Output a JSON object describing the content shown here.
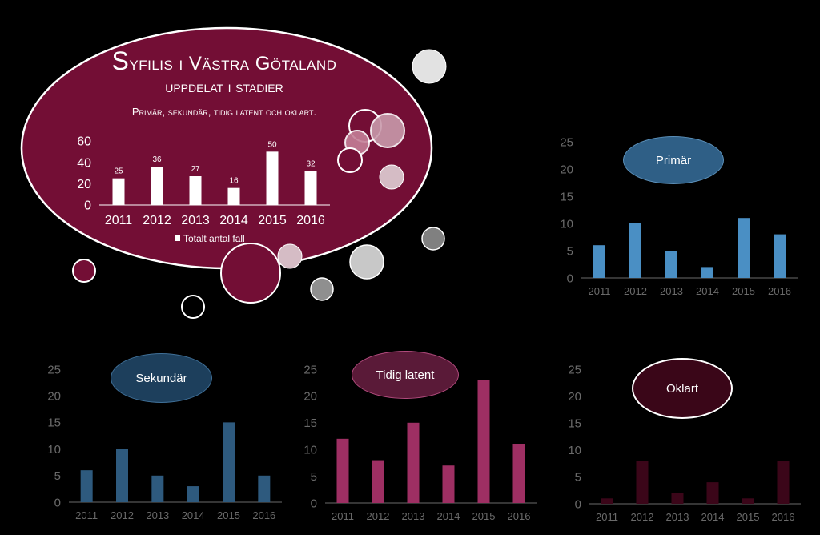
{
  "header": {
    "title_line1": "Syfilis i Västra Götaland",
    "title_line2": "uppdelat i stadier",
    "subtitle": "Primär, sekundär, tidig latent och oklart."
  },
  "chart_data": [
    {
      "type": "bar",
      "label": "",
      "legend": "Totalt antal fall",
      "categories": [
        "2011",
        "2012",
        "2013",
        "2014",
        "2015",
        "2016"
      ],
      "values": [
        25,
        36,
        27,
        16,
        50,
        32
      ],
      "ylim": [
        0,
        60
      ],
      "yticks": [
        0,
        20,
        40,
        60
      ],
      "data_labels": true,
      "color": "#ffffff",
      "legend_position": "bottom",
      "grid": false
    },
    {
      "type": "bar",
      "label": "Primär",
      "categories": [
        "2011",
        "2012",
        "2013",
        "2014",
        "2015",
        "2016"
      ],
      "values": [
        6,
        10,
        5,
        2,
        11,
        8
      ],
      "ylim": [
        0,
        25
      ],
      "yticks": [
        0,
        5,
        10,
        15,
        20,
        25
      ],
      "color": "#4a8fc4",
      "grid": false
    },
    {
      "type": "bar",
      "label": "Sekundär",
      "categories": [
        "2011",
        "2012",
        "2013",
        "2014",
        "2015",
        "2016"
      ],
      "values": [
        6,
        10,
        5,
        3,
        15,
        5
      ],
      "ylim": [
        0,
        25
      ],
      "yticks": [
        0,
        5,
        10,
        15,
        20,
        25
      ],
      "color": "#2e5a7e",
      "grid": false
    },
    {
      "type": "bar",
      "label": "Tidig latent",
      "categories": [
        "2011",
        "2012",
        "2013",
        "2014",
        "2015",
        "2016"
      ],
      "values": [
        12,
        8,
        15,
        7,
        23,
        11
      ],
      "ylim": [
        0,
        25
      ],
      "yticks": [
        0,
        5,
        10,
        15,
        20,
        25
      ],
      "color": "#9e2f63",
      "grid": false
    },
    {
      "type": "bar",
      "label": "Oklart",
      "categories": [
        "2011",
        "2012",
        "2013",
        "2014",
        "2015",
        "2016"
      ],
      "values": [
        1,
        8,
        2,
        4,
        1,
        8
      ],
      "ylim": [
        0,
        25
      ],
      "yticks": [
        0,
        5,
        10,
        15,
        20,
        25
      ],
      "color": "#3b0619",
      "grid": false
    }
  ],
  "colors": {
    "oval_fill": "#730e35",
    "oval_stroke": "#ffffff",
    "primar_label_fill": "#2f5f86",
    "sekundar_label_fill": "#1d3f5c",
    "tidig_label_fill": "#5a1a38",
    "oklart_label_fill": "#3a0618"
  }
}
